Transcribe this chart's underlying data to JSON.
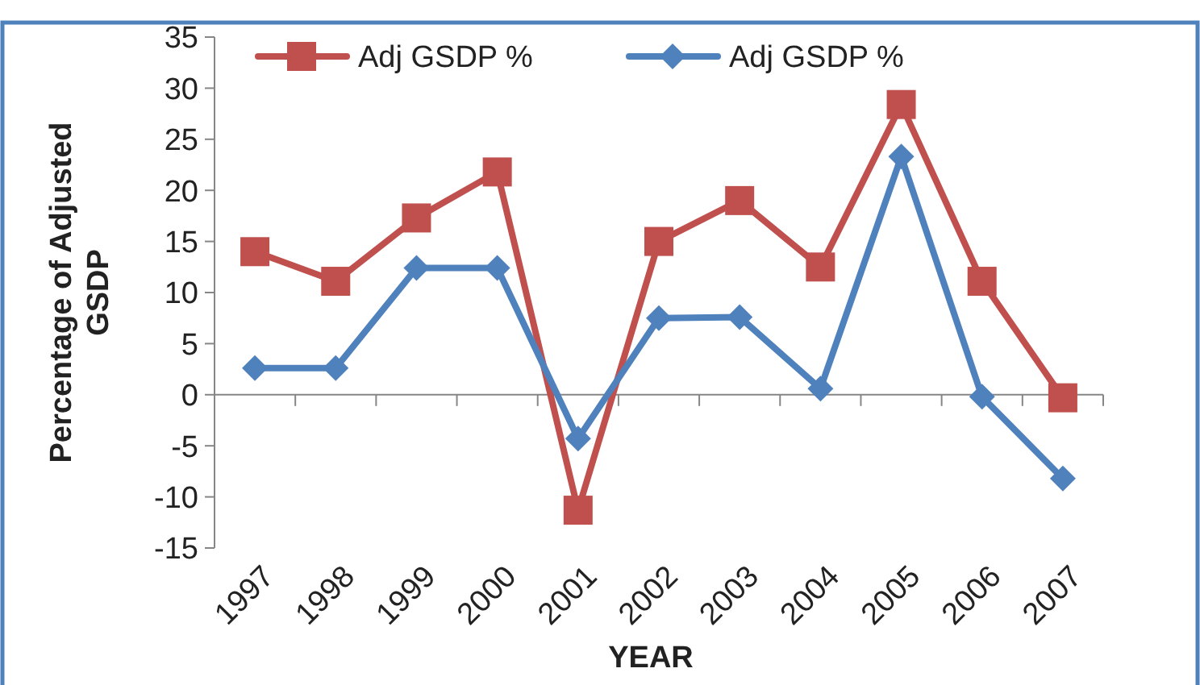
{
  "chart_data": {
    "type": "line",
    "xlabel": "YEAR",
    "ylabel": "Percentage of Adjusted GSDP",
    "categories": [
      "1997",
      "1998",
      "1999",
      "2000",
      "2001",
      "2002",
      "2003",
      "2004",
      "2005",
      "2006",
      "2007"
    ],
    "series": [
      {
        "name": "Adj GSDP %",
        "color": "#c0504d",
        "marker": "square",
        "values": [
          14.0,
          11.1,
          17.3,
          21.8,
          -11.3,
          15.0,
          19.0,
          12.5,
          28.4,
          11.1,
          -0.3
        ]
      },
      {
        "name": "Adj GSDP %",
        "color": "#4f81bd",
        "marker": "diamond",
        "values": [
          2.6,
          2.6,
          12.4,
          12.4,
          -4.3,
          7.5,
          7.6,
          0.6,
          23.3,
          -0.2,
          -8.2
        ]
      }
    ],
    "ylim": [
      -15,
      35
    ],
    "yticks": [
      -15,
      -10,
      -5,
      0,
      5,
      10,
      15,
      20,
      25,
      30,
      35
    ],
    "legend": "top",
    "line_style": "solid"
  }
}
